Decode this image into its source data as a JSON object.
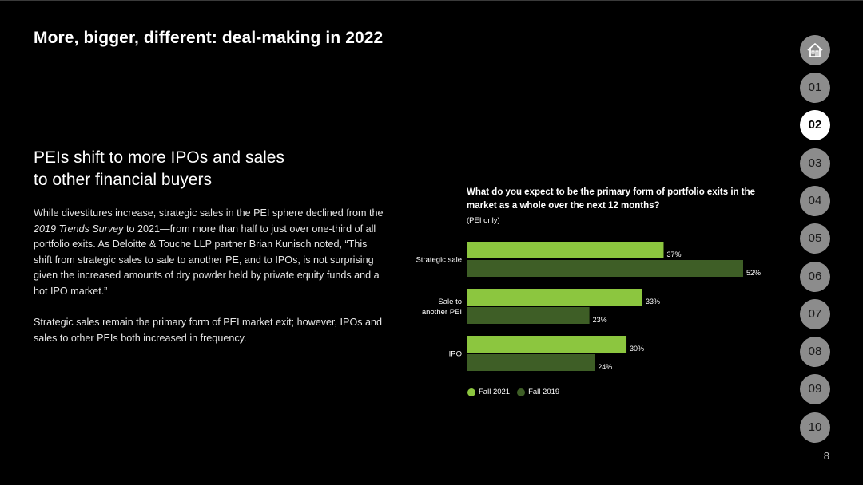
{
  "page": {
    "title": "More, bigger, different: deal-making in 2022",
    "subtitle_line1": "PEIs shift to more IPOs and sales",
    "subtitle_line2": "to other financial buyers",
    "para1_a": "While divestitures increase, strategic sales in the PEI sphere declined from the ",
    "para1_em": "2019 Trends Survey",
    "para1_b": " to 2021—from more than half to just over one-third of all portfolio exits. As Deloitte & Touche LLP partner Brian Kunisch noted, “This shift from strategic sales to sale to another PE, and to IPOs, is not surprising given the increased amounts of dry powder held by private equity funds and a hot IPO market.”",
    "para2": "Strategic sales remain the primary form of PEI market exit; however, IPOs and sales to other PEIs both increased in frequency.",
    "page_number": "8"
  },
  "nav": {
    "home_icon": "home-icon",
    "items": [
      "01",
      "02",
      "03",
      "04",
      "05",
      "06",
      "07",
      "08",
      "09",
      "10"
    ],
    "active": "02"
  },
  "colors": {
    "background": "#000000",
    "fall_2021": "#8cc63f",
    "fall_2019": "#3e5e26",
    "nav_inactive": "#8c8c8c",
    "nav_active": "#ffffff"
  },
  "chart_data": {
    "type": "bar",
    "orientation": "horizontal",
    "title": "What do you expect to be the primary form of portfolio exits in the market as a whole over the next 12 months?",
    "subtitle": "(PEI only)",
    "categories": [
      "Strategic sale",
      "Sale to another PEI",
      "IPO"
    ],
    "category_lines": [
      [
        "Strategic sale"
      ],
      [
        "Sale to",
        "another PEI"
      ],
      [
        "IPO"
      ]
    ],
    "series": [
      {
        "name": "Fall 2021",
        "values": [
          37,
          33,
          30
        ],
        "color": "#8cc63f"
      },
      {
        "name": "Fall 2019",
        "values": [
          52,
          23,
          24
        ],
        "color": "#3e5e26"
      }
    ],
    "value_suffix": "%",
    "xlim": [
      0,
      52
    ],
    "legend": "bottom-left",
    "grid": false
  }
}
